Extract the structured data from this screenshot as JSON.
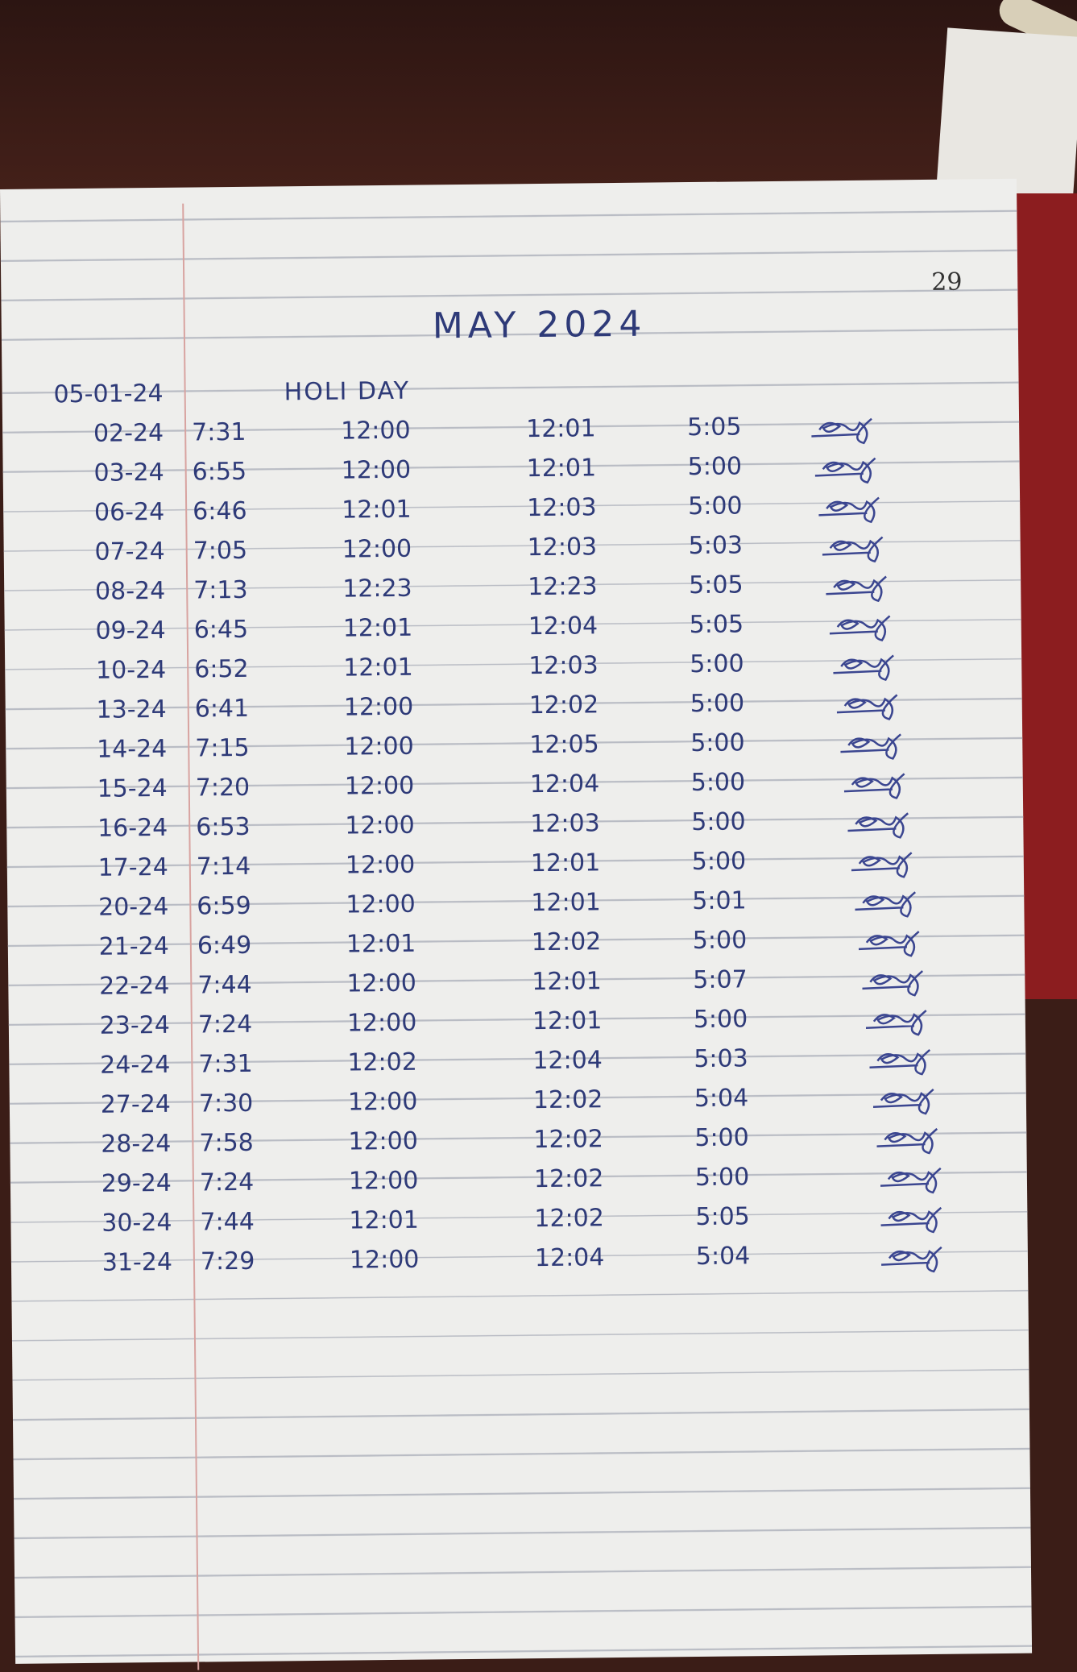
{
  "page": {
    "number": "29",
    "title": "MAY 2024"
  },
  "rows": [
    {
      "date": "05-01-24",
      "note": "HOLI DAY"
    },
    {
      "date": "02-24",
      "in": "7:31",
      "lunch_out": "12:00",
      "lunch_in": "12:01",
      "out": "5:05"
    },
    {
      "date": "03-24",
      "in": "6:55",
      "lunch_out": "12:00",
      "lunch_in": "12:01",
      "out": "5:00"
    },
    {
      "date": "06-24",
      "in": "6:46",
      "lunch_out": "12:01",
      "lunch_in": "12:03",
      "out": "5:00"
    },
    {
      "date": "07-24",
      "in": "7:05",
      "lunch_out": "12:00",
      "lunch_in": "12:03",
      "out": "5:03"
    },
    {
      "date": "08-24",
      "in": "7:13",
      "lunch_out": "12:23",
      "lunch_in": "12:23",
      "out": "5:05"
    },
    {
      "date": "09-24",
      "in": "6:45",
      "lunch_out": "12:01",
      "lunch_in": "12:04",
      "out": "5:05"
    },
    {
      "date": "10-24",
      "in": "6:52",
      "lunch_out": "12:01",
      "lunch_in": "12:03",
      "out": "5:00"
    },
    {
      "date": "13-24",
      "in": "6:41",
      "lunch_out": "12:00",
      "lunch_in": "12:02",
      "out": "5:00"
    },
    {
      "date": "14-24",
      "in": "7:15",
      "lunch_out": "12:00",
      "lunch_in": "12:05",
      "out": "5:00"
    },
    {
      "date": "15-24",
      "in": "7:20",
      "lunch_out": "12:00",
      "lunch_in": "12:04",
      "out": "5:00"
    },
    {
      "date": "16-24",
      "in": "6:53",
      "lunch_out": "12:00",
      "lunch_in": "12:03",
      "out": "5:00"
    },
    {
      "date": "17-24",
      "in": "7:14",
      "lunch_out": "12:00",
      "lunch_in": "12:01",
      "out": "5:00"
    },
    {
      "date": "20-24",
      "in": "6:59",
      "lunch_out": "12:00",
      "lunch_in": "12:01",
      "out": "5:01"
    },
    {
      "date": "21-24",
      "in": "6:49",
      "lunch_out": "12:01",
      "lunch_in": "12:02",
      "out": "5:00"
    },
    {
      "date": "22-24",
      "in": "7:44",
      "lunch_out": "12:00",
      "lunch_in": "12:01",
      "out": "5:07"
    },
    {
      "date": "23-24",
      "in": "7:24",
      "lunch_out": "12:00",
      "lunch_in": "12:01",
      "out": "5:00"
    },
    {
      "date": "24-24",
      "in": "7:31",
      "lunch_out": "12:02",
      "lunch_in": "12:04",
      "out": "5:03"
    },
    {
      "date": "27-24",
      "in": "7:30",
      "lunch_out": "12:00",
      "lunch_in": "12:02",
      "out": "5:04"
    },
    {
      "date": "28-24",
      "in": "7:58",
      "lunch_out": "12:00",
      "lunch_in": "12:02",
      "out": "5:00"
    },
    {
      "date": "29-24",
      "in": "7:24",
      "lunch_out": "12:00",
      "lunch_in": "12:02",
      "out": "5:00"
    },
    {
      "date": "30-24",
      "in": "7:44",
      "lunch_out": "12:01",
      "lunch_in": "12:02",
      "out": "5:05"
    },
    {
      "date": "31-24",
      "in": "7:29",
      "lunch_out": "12:00",
      "lunch_in": "12:04",
      "out": "5:04"
    }
  ],
  "colors": {
    "ink": "#2e3a78",
    "margin": "#d8a3a0",
    "paper": "#eeeeec"
  }
}
